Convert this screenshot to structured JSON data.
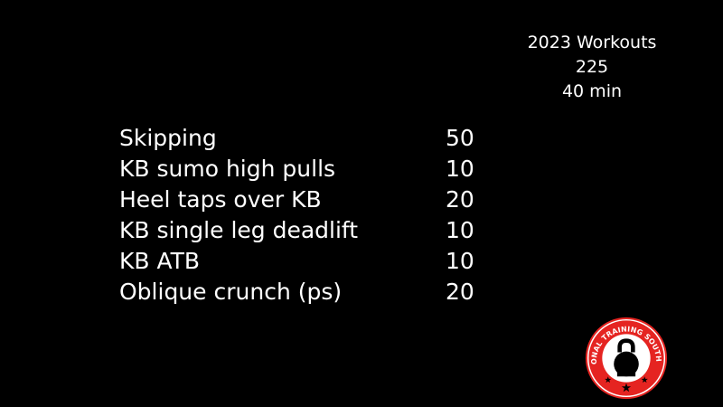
{
  "header": {
    "year_label": "2023 Workouts",
    "workout_number": "225",
    "duration": "40 min"
  },
  "exercises": [
    {
      "name": "Skipping",
      "reps": "50"
    },
    {
      "name": "KB sumo high pulls",
      "reps": "10"
    },
    {
      "name": "Heel taps over KB",
      "reps": "20"
    },
    {
      "name": "KB single leg deadlift",
      "reps": "10"
    },
    {
      "name": "KB ATB",
      "reps": "10"
    },
    {
      "name": "Oblique crunch (ps)",
      "reps": "20"
    }
  ],
  "logo": {
    "text": "FUNCTIONAL TRAINING SOUTH AFRICA",
    "icon": "kettlebell-icon",
    "colors": {
      "ring": "#e52421",
      "inner": "#ffffff",
      "icon": "#000000"
    }
  }
}
